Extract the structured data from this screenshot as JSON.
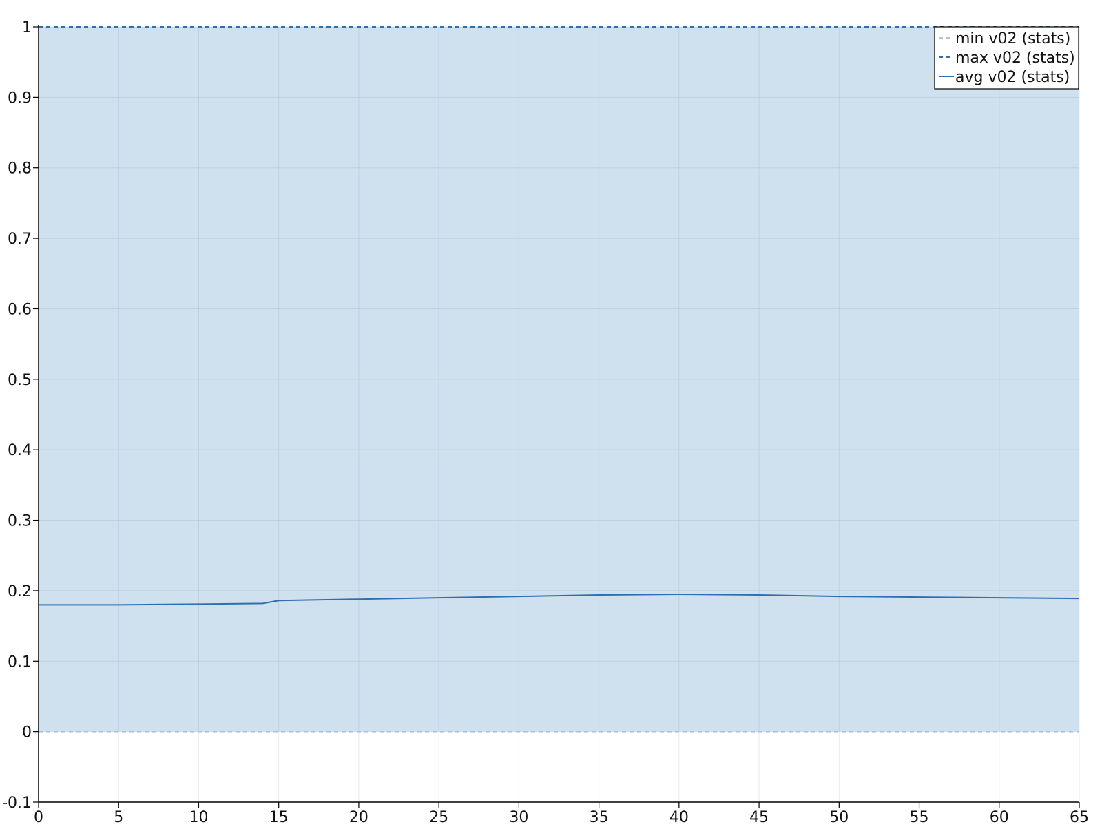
{
  "chart_data": {
    "type": "area",
    "title": "",
    "xlabel": "",
    "ylabel": "",
    "xlim": [
      0,
      65
    ],
    "ylim": [
      -0.1,
      1
    ],
    "x_ticks": [
      0,
      5,
      10,
      15,
      20,
      25,
      30,
      35,
      40,
      45,
      50,
      55,
      60,
      65
    ],
    "y_ticks": [
      -0.1,
      0,
      0.1,
      0.2,
      0.3,
      0.4,
      0.5,
      0.6,
      0.7,
      0.8,
      0.9,
      1
    ],
    "y_tick_labels": [
      "-0.1",
      "0",
      "0.1",
      "0.2",
      "0.3",
      "0.4",
      "0.5",
      "0.6",
      "0.7",
      "0.8",
      "0.9",
      "1"
    ],
    "grid": true,
    "legend_position": "top-right",
    "band_color": "#cfe0ee",
    "series": [
      {
        "name": "min v02 (stats)",
        "style": "dashed",
        "color": "#a9c6e0",
        "x": [
          0,
          65
        ],
        "values": [
          0,
          0
        ]
      },
      {
        "name": "max v02 (stats)",
        "style": "dashed",
        "color": "#2f6fb0",
        "x": [
          0,
          65
        ],
        "values": [
          1,
          1
        ]
      },
      {
        "name": "avg v02 (stats)",
        "style": "solid",
        "color": "#2f6fb0",
        "x": [
          0,
          5,
          10,
          14,
          15,
          20,
          25,
          30,
          35,
          40,
          45,
          50,
          55,
          60,
          65
        ],
        "values": [
          0.18,
          0.18,
          0.181,
          0.182,
          0.186,
          0.188,
          0.19,
          0.192,
          0.194,
          0.195,
          0.194,
          0.192,
          0.191,
          0.19,
          0.189
        ]
      }
    ]
  }
}
